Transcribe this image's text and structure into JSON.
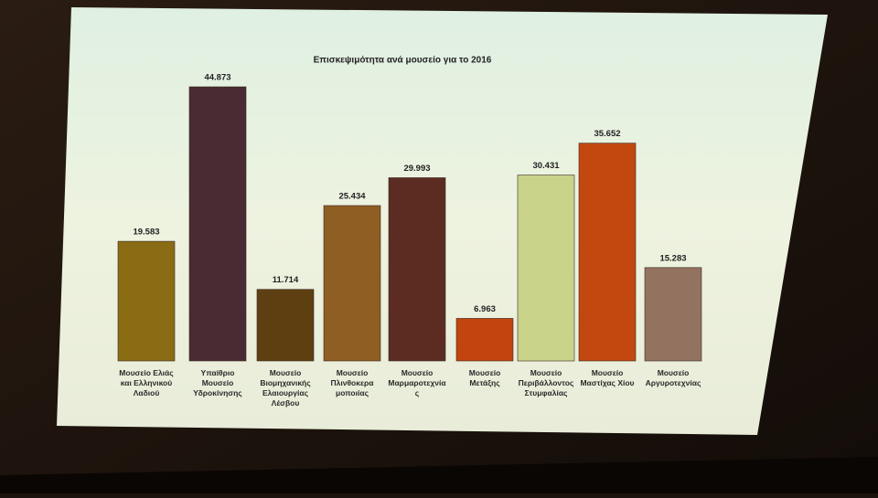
{
  "chart_data": {
    "type": "bar",
    "title": "Επισκεψιμότητα ανά μουσείο για το 2016",
    "categories": [
      "Μουσείο Ελιάς και Ελληνικού Λαδιού",
      "Υπαίθριο Μουσείο Υδροκίνησης",
      "Μουσείο Βιομηχανικής Ελαιουργίας Λέσβου",
      "Μουσείο Πλινθοκεραμοποιίας",
      "Μουσείο Μαρμαροτεχνίας",
      "Μουσείο Μετάξης",
      "Μουσείο Περιβάλλοντος Στυμφαλίας",
      "Μουσείο Μαστίχας Χίου",
      "Μουσείο Αργυροτεχνίας"
    ],
    "values": [
      19583,
      44873,
      11714,
      25434,
      29993,
      6963,
      30431,
      35652,
      15283
    ],
    "value_labels": [
      "19.583",
      "44.873",
      "11.714",
      "25.434",
      "29.993",
      "6.963",
      "30.431",
      "35.652",
      "15.283"
    ],
    "colors": [
      "#8a6c14",
      "#4a2b33",
      "#5e3f12",
      "#8f5e22",
      "#5c2c22",
      "#c2440f",
      "#c9d38a",
      "#c2480f",
      "#93725f"
    ]
  }
}
